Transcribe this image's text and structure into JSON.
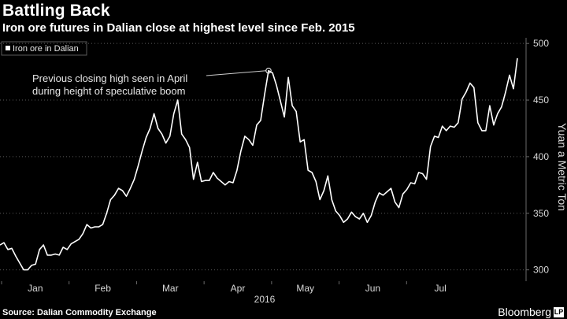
{
  "header": {
    "title": "Battling Back",
    "subtitle": "Iron ore futures in Dalian close at highest level since Feb. 2015"
  },
  "footer": {
    "source": "Source: Dalian Commodity Exchange",
    "brand": "Bloomberg",
    "brand_mark": "LP"
  },
  "colors": {
    "background": "#000000",
    "line": "#ffffff",
    "grid": "#5a5a5a"
  },
  "chart_data": {
    "type": "line",
    "title": "Battling Back",
    "subtitle": "Iron ore futures in Dalian close at highest level since Feb. 2015",
    "xlabel": "2016",
    "ylabel": "Yuan a Metric Ton",
    "ylim": [
      290,
      505
    ],
    "yticks": [
      300,
      350,
      400,
      450,
      500
    ],
    "xticks": [
      "Jan",
      "Feb",
      "Mar",
      "Apr",
      "May",
      "Jun",
      "Jul"
    ],
    "x_year_label": "2016",
    "grid": "horizontal dotted",
    "legend_position": "top-left",
    "annotation": {
      "text_line1": "Previous closing high seen in April",
      "text_line2": "during height of speculative boom",
      "value": 476
    },
    "series": [
      {
        "name": "Iron ore in Dalian",
        "values": [
          322,
          324,
          318,
          319,
          312,
          306,
          300,
          300,
          304,
          305,
          318,
          322,
          313,
          313,
          314,
          313,
          320,
          318,
          323,
          325,
          327,
          332,
          340,
          337,
          338,
          338,
          340,
          350,
          362,
          366,
          372,
          370,
          365,
          372,
          380,
          392,
          405,
          417,
          425,
          438,
          425,
          420,
          412,
          418,
          438,
          450,
          420,
          415,
          408,
          380,
          395,
          378,
          379,
          379,
          386,
          381,
          378,
          375,
          378,
          377,
          388,
          405,
          418,
          415,
          410,
          428,
          432,
          455,
          476,
          474,
          463,
          449,
          435,
          470,
          445,
          440,
          413,
          415,
          388,
          386,
          378,
          362,
          370,
          383,
          362,
          352,
          348,
          342,
          345,
          351,
          347,
          345,
          350,
          342,
          348,
          360,
          368,
          366,
          369,
          372,
          360,
          355,
          367,
          371,
          377,
          376,
          386,
          385,
          380,
          409,
          418,
          417,
          427,
          423,
          427,
          426,
          430,
          451,
          457,
          465,
          461,
          430,
          423,
          423,
          445,
          428,
          438,
          444,
          457,
          472,
          460,
          487
        ]
      }
    ]
  }
}
